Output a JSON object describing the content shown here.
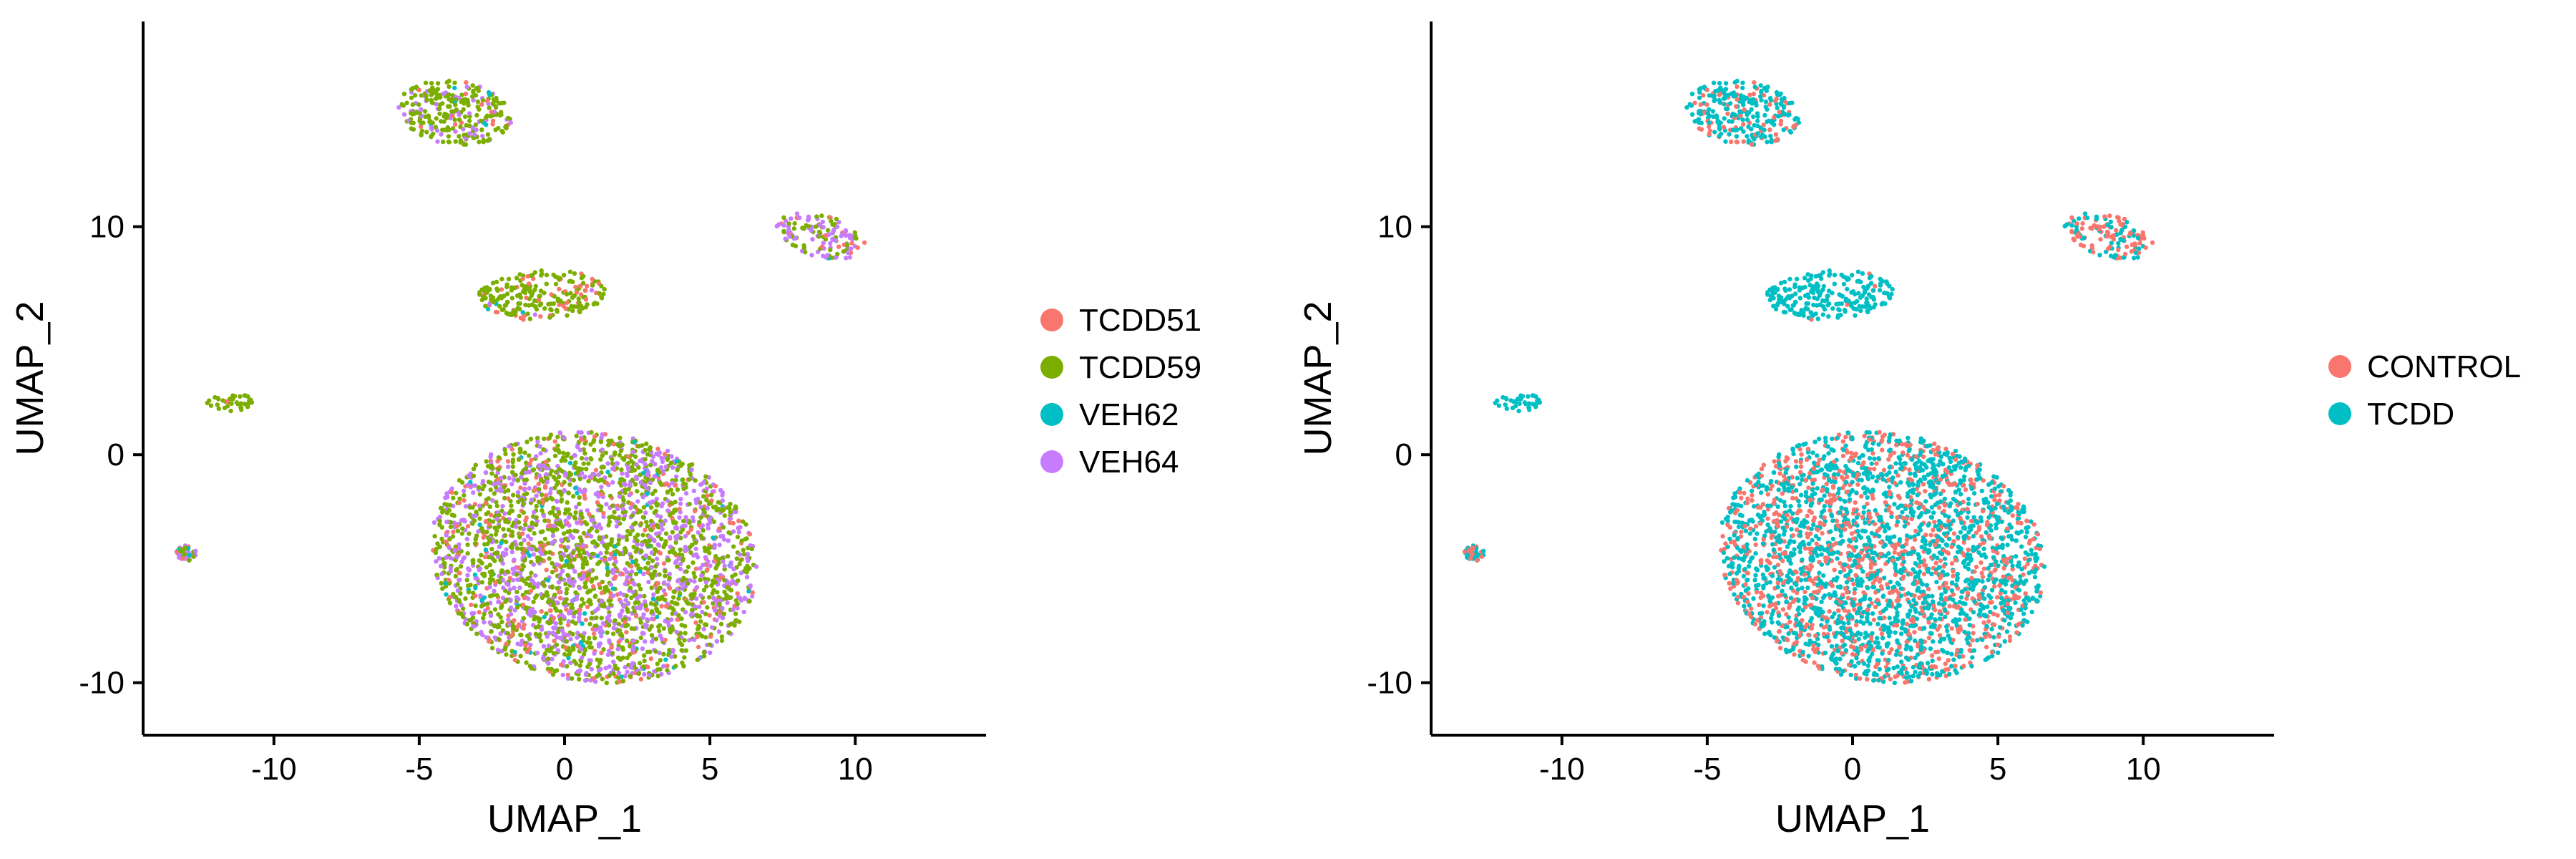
{
  "chart_data": [
    {
      "type": "scatter",
      "title": "",
      "group_by": "sample",
      "xlabel": "UMAP_1",
      "ylabel": "UMAP_2",
      "xlim": [
        -14.5,
        14.5
      ],
      "ylim": [
        -12.3,
        19.0
      ],
      "xticks": [
        -10,
        -5,
        0,
        5,
        10
      ],
      "yticks": [
        -10,
        0,
        10
      ],
      "grid": false,
      "legend_position": "right",
      "series": [
        {
          "name": "TCDD51",
          "color": "#F8766D"
        },
        {
          "name": "TCDD59",
          "color": "#7CAE00"
        },
        {
          "name": "VEH62",
          "color": "#00BFC4"
        },
        {
          "name": "VEH64",
          "color": "#C77CFF"
        }
      ],
      "clusters": [
        {
          "label": "large lower cluster",
          "cx": 1.0,
          "cy": -4.5,
          "rx": 5.3,
          "ry": 5.8,
          "rotation_deg": 50,
          "mix": [
            0.12,
            0.52,
            0.03,
            0.33
          ]
        },
        {
          "label": "upper hook cluster",
          "cx": -3.8,
          "cy": 15.0,
          "rx": 2.0,
          "ry": 1.4,
          "rotation_deg": -10,
          "mix": [
            0.04,
            0.72,
            0.03,
            0.21
          ]
        },
        {
          "label": "middle cluster",
          "cx": -0.8,
          "cy": 7.0,
          "rx": 2.2,
          "ry": 1.1,
          "rotation_deg": 5,
          "mix": [
            0.18,
            0.79,
            0.01,
            0.02
          ]
        },
        {
          "label": "right upper cluster",
          "cx": 8.8,
          "cy": 9.6,
          "rx": 1.6,
          "ry": 0.9,
          "rotation_deg": -20,
          "mix": [
            0.08,
            0.35,
            0.02,
            0.55
          ]
        },
        {
          "label": "small left cluster",
          "cx": -11.5,
          "cy": 2.3,
          "rx": 0.8,
          "ry": 0.4,
          "rotation_deg": 0,
          "mix": [
            0.05,
            0.93,
            0.0,
            0.02
          ]
        },
        {
          "label": "bottom left specks",
          "cx": -13.0,
          "cy": -4.3,
          "rx": 0.35,
          "ry": 0.35,
          "rotation_deg": 0,
          "mix": [
            0.1,
            0.4,
            0.1,
            0.4
          ]
        }
      ]
    },
    {
      "type": "scatter",
      "title": "",
      "group_by": "condition",
      "xlabel": "UMAP_1",
      "ylabel": "UMAP_2",
      "xlim": [
        -14.5,
        14.5
      ],
      "ylim": [
        -12.3,
        19.0
      ],
      "xticks": [
        -10,
        -5,
        0,
        5,
        10
      ],
      "yticks": [
        -10,
        0,
        10
      ],
      "grid": false,
      "legend_position": "right",
      "series": [
        {
          "name": "CONTROL",
          "color": "#F8766D"
        },
        {
          "name": "TCDD",
          "color": "#00BFC4"
        }
      ],
      "clusters": [
        {
          "label": "large lower cluster",
          "cx": 1.0,
          "cy": -4.5,
          "rx": 5.3,
          "ry": 5.8,
          "rotation_deg": 50,
          "mix": [
            0.36,
            0.64
          ]
        },
        {
          "label": "upper hook cluster",
          "cx": -3.8,
          "cy": 15.0,
          "rx": 2.0,
          "ry": 1.4,
          "rotation_deg": -10,
          "mix": [
            0.22,
            0.78
          ]
        },
        {
          "label": "middle cluster",
          "cx": -0.8,
          "cy": 7.0,
          "rx": 2.2,
          "ry": 1.1,
          "rotation_deg": 5,
          "mix": [
            0.03,
            0.97
          ]
        },
        {
          "label": "right upper cluster",
          "cx": 8.8,
          "cy": 9.6,
          "rx": 1.6,
          "ry": 0.9,
          "rotation_deg": -20,
          "mix": [
            0.6,
            0.4
          ]
        },
        {
          "label": "small left cluster",
          "cx": -11.5,
          "cy": 2.3,
          "rx": 0.8,
          "ry": 0.4,
          "rotation_deg": 0,
          "mix": [
            0.02,
            0.98
          ]
        },
        {
          "label": "bottom left specks",
          "cx": -13.0,
          "cy": -4.3,
          "rx": 0.35,
          "ry": 0.35,
          "rotation_deg": 0,
          "mix": [
            0.5,
            0.5
          ]
        }
      ]
    }
  ]
}
